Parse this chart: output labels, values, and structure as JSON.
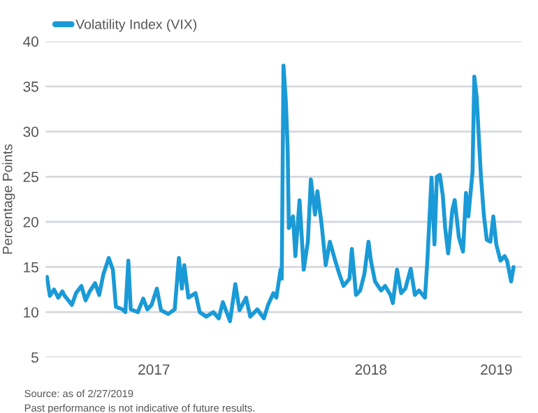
{
  "chart_data": {
    "type": "line",
    "x": [
      "2017-01-03",
      "2017-01-08",
      "2017-01-15",
      "2017-01-22",
      "2017-01-29",
      "2017-02-02",
      "2017-02-14",
      "2017-02-21",
      "2017-03-02",
      "2017-03-09",
      "2017-03-16",
      "2017-03-25",
      "2017-04-01",
      "2017-04-08",
      "2017-04-17",
      "2017-04-24",
      "2017-04-29",
      "2017-05-10",
      "2017-05-15",
      "2017-05-20",
      "2017-05-24",
      "2017-06-05",
      "2017-06-14",
      "2017-06-21",
      "2017-06-28",
      "2017-07-07",
      "2017-07-14",
      "2017-07-26",
      "2017-08-06",
      "2017-08-13",
      "2017-08-18",
      "2017-08-22",
      "2017-08-29",
      "2017-09-10",
      "2017-09-17",
      "2017-09-28",
      "2017-10-10",
      "2017-10-19",
      "2017-10-26",
      "2017-11-07",
      "2017-11-16",
      "2017-11-23",
      "2017-12-04",
      "2017-12-11",
      "2017-12-23",
      "2018-01-03",
      "2018-01-10",
      "2018-01-19",
      "2018-01-24",
      "2018-01-31",
      "2018-02-02",
      "2018-02-05",
      "2018-02-09",
      "2018-02-12",
      "2018-02-14",
      "2018-02-21",
      "2018-02-25",
      "2018-03-04",
      "2018-03-11",
      "2018-03-18",
      "2018-03-23",
      "2018-03-30",
      "2018-04-03",
      "2018-04-10",
      "2018-04-17",
      "2018-04-24",
      "2018-05-03",
      "2018-05-10",
      "2018-05-17",
      "2018-05-27",
      "2018-05-31",
      "2018-06-07",
      "2018-06-14",
      "2018-06-21",
      "2018-06-28",
      "2018-07-02",
      "2018-07-09",
      "2018-07-19",
      "2018-07-26",
      "2018-08-04",
      "2018-08-08",
      "2018-08-15",
      "2018-08-22",
      "2018-08-29",
      "2018-09-07",
      "2018-09-14",
      "2018-09-21",
      "2018-10-01",
      "2018-10-05",
      "2018-10-12",
      "2018-10-17",
      "2018-10-21",
      "2018-10-26",
      "2018-10-31",
      "2018-11-04",
      "2018-11-09",
      "2018-11-16",
      "2018-11-20",
      "2018-11-27",
      "2018-12-04",
      "2018-12-09",
      "2018-12-13",
      "2018-12-20",
      "2018-12-23",
      "2018-12-27",
      "2019-01-03",
      "2019-01-08",
      "2019-01-13",
      "2019-01-19",
      "2019-01-24",
      "2019-01-29",
      "2019-02-05",
      "2019-02-12",
      "2019-02-16",
      "2019-02-23",
      "2019-02-27"
    ],
    "series": [
      {
        "name": "Volatility Index (VIX)",
        "color": "#1a9ad6",
        "values": [
          13.9,
          11.8,
          12.5,
          11.6,
          12.3,
          11.8,
          10.8,
          12.1,
          12.9,
          11.3,
          12.3,
          13.2,
          11.9,
          14.2,
          16.0,
          14.7,
          10.6,
          10.3,
          10.0,
          15.7,
          10.3,
          10.0,
          11.5,
          10.3,
          10.8,
          12.6,
          10.2,
          9.8,
          10.3,
          16.0,
          12.6,
          15.2,
          11.6,
          12.1,
          10.0,
          9.5,
          10.0,
          9.3,
          11.1,
          9.0,
          13.1,
          10.2,
          11.6,
          9.5,
          10.3,
          9.3,
          10.8,
          12.1,
          11.6,
          14.7,
          13.7,
          37.3,
          33.3,
          28.1,
          19.3,
          20.6,
          16.2,
          22.4,
          14.7,
          17.8,
          24.7,
          20.8,
          23.4,
          19.8,
          15.2,
          17.8,
          15.7,
          14.2,
          12.9,
          13.7,
          17.0,
          11.9,
          12.4,
          14.2,
          17.8,
          15.7,
          13.4,
          12.4,
          12.9,
          11.9,
          11.0,
          14.7,
          12.1,
          12.6,
          14.8,
          11.9,
          12.4,
          11.6,
          15.7,
          24.9,
          17.5,
          25.0,
          25.2,
          22.9,
          19.3,
          16.5,
          21.3,
          22.4,
          18.3,
          16.7,
          23.2,
          20.6,
          25.5,
          36.1,
          33.8,
          25.2,
          20.8,
          18.0,
          17.8,
          20.6,
          17.5,
          15.7,
          16.2,
          15.7,
          13.4,
          15.0
        ]
      }
    ],
    "ylabel": "Percentage Points",
    "xlim": [
      "2017-01-01",
      "2019-03-13"
    ],
    "xticks": [
      {
        "value": "2017-07-02",
        "label": "2017"
      },
      {
        "value": "2018-07-02",
        "label": "2018"
      },
      {
        "value": "2019-01-29",
        "label": "2019"
      }
    ],
    "ylim": [
      5,
      40
    ],
    "yticks": [
      5,
      10,
      15,
      20,
      25,
      30,
      35,
      40
    ],
    "grid": "y",
    "legend": "top left",
    "line_style": "solid",
    "marker": "none",
    "annotations": [
      "Source: as of 2/27/2019",
      "Past performance is not indicative of future results."
    ]
  }
}
